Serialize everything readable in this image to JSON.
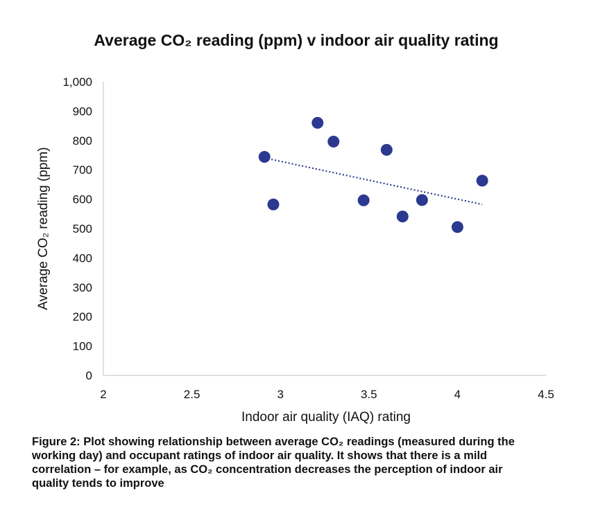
{
  "chart_data": {
    "type": "scatter",
    "title": "Average CO₂ reading (ppm) v indoor air quality rating",
    "xlabel": "Indoor air quality (IAQ) rating",
    "ylabel": "Average CO₂ reading (ppm)",
    "xlim": [
      2,
      4.5
    ],
    "ylim": [
      0,
      1000
    ],
    "x_ticks": [
      2,
      2.5,
      3,
      3.5,
      4,
      4.5
    ],
    "x_tick_labels": [
      "2",
      "2.5",
      "3",
      "3.5",
      "4",
      "4.5"
    ],
    "y_ticks": [
      0,
      100,
      200,
      300,
      400,
      500,
      600,
      700,
      800,
      900,
      1000
    ],
    "y_tick_labels": [
      "0",
      "100",
      "200",
      "300",
      "400",
      "500",
      "600",
      "700",
      "800",
      "900",
      "1,000"
    ],
    "grid": false,
    "series": [
      {
        "points": [
          {
            "x": 2.91,
            "y": 744
          },
          {
            "x": 2.96,
            "y": 582
          },
          {
            "x": 3.21,
            "y": 860
          },
          {
            "x": 3.3,
            "y": 796
          },
          {
            "x": 3.47,
            "y": 596
          },
          {
            "x": 3.6,
            "y": 768
          },
          {
            "x": 3.69,
            "y": 541
          },
          {
            "x": 3.8,
            "y": 597
          },
          {
            "x": 4.0,
            "y": 505
          },
          {
            "x": 4.14,
            "y": 663
          }
        ],
        "color": "#2b3990"
      }
    ],
    "trendline": {
      "style": "dotted",
      "color": "#2b3990",
      "from": {
        "x": 2.93,
        "y": 738
      },
      "to": {
        "x": 4.14,
        "y": 582
      }
    }
  },
  "caption": "Figure 2: Plot showing relationship between average CO₂ readings (measured during the working day) and occupant ratings of indoor air quality. It shows that there is a mild correlation – for example, as CO₂ concentration decreases the perception of indoor air quality tends to improve"
}
